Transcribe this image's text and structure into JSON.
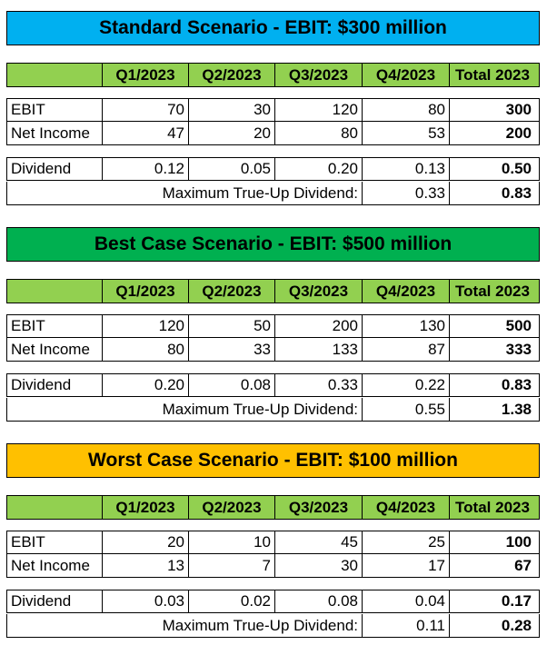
{
  "headers": [
    "",
    "Q1/2023",
    "Q2/2023",
    "Q3/2023",
    "Q4/2023",
    "Total 2023"
  ],
  "trueup_label": "Maximum True-Up Dividend:",
  "scenarios": [
    {
      "title": "Standard Scenario - EBIT: $300 million",
      "color": "#00b0f0",
      "rows": [
        {
          "label": "EBIT",
          "values": [
            "70",
            "30",
            "120",
            "80"
          ],
          "total": "300"
        },
        {
          "label": "Net Income",
          "values": [
            "47",
            "20",
            "80",
            "53"
          ],
          "total": "200"
        },
        {
          "label": "Dividend",
          "values": [
            "0.12",
            "0.05",
            "0.20",
            "0.13"
          ],
          "total": "0.50"
        }
      ],
      "trueup": {
        "q4": "0.33",
        "total": "0.83"
      }
    },
    {
      "title": "Best Case Scenario - EBIT: $500 million",
      "color": "#00b050",
      "rows": [
        {
          "label": "EBIT",
          "values": [
            "120",
            "50",
            "200",
            "130"
          ],
          "total": "500"
        },
        {
          "label": "Net Income",
          "values": [
            "80",
            "33",
            "133",
            "87"
          ],
          "total": "333"
        },
        {
          "label": "Dividend",
          "values": [
            "0.20",
            "0.08",
            "0.33",
            "0.22"
          ],
          "total": "0.83"
        }
      ],
      "trueup": {
        "q4": "0.55",
        "total": "1.38"
      }
    },
    {
      "title": "Worst Case Scenario - EBIT: $100 million",
      "color": "#ffc000",
      "rows": [
        {
          "label": "EBIT",
          "values": [
            "20",
            "10",
            "45",
            "25"
          ],
          "total": "100"
        },
        {
          "label": "Net Income",
          "values": [
            "13",
            "7",
            "30",
            "17"
          ],
          "total": "67"
        },
        {
          "label": "Dividend",
          "values": [
            "0.03",
            "0.02",
            "0.08",
            "0.04"
          ],
          "total": "0.17"
        }
      ],
      "trueup": {
        "q4": "0.11",
        "total": "0.28"
      }
    }
  ]
}
